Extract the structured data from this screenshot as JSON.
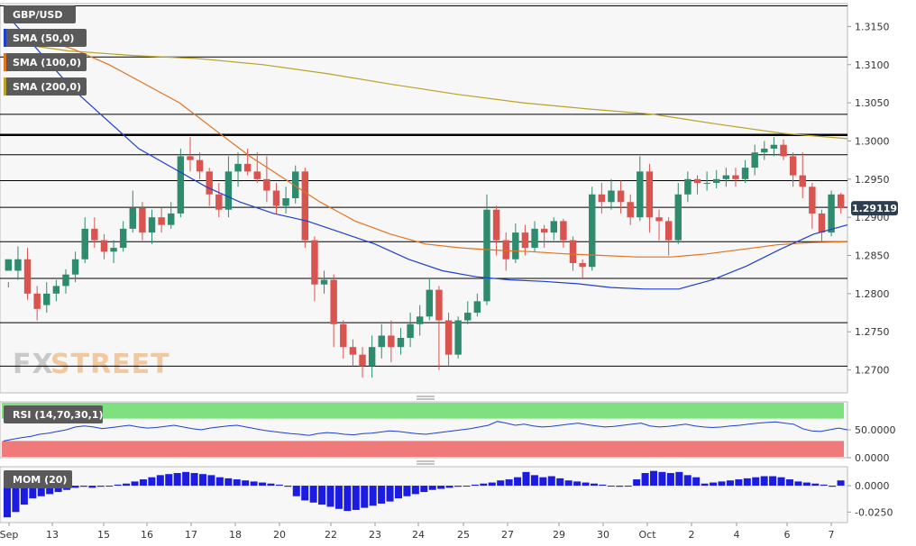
{
  "chart_data": [
    {
      "type": "candlestick",
      "symbol": "GBP/USD",
      "current_price": "1.29119",
      "ylim": [
        1.267,
        1.318
      ],
      "y_ticks": [
        "1.3150",
        "1.3100",
        "1.3050",
        "1.3000",
        "1.2950",
        "1.2900",
        "1.2850",
        "1.2800",
        "1.2750",
        "1.2700"
      ],
      "x_ticks": [
        "Sep",
        "13",
        "15",
        "16",
        "17",
        "18",
        "20",
        "22",
        "23",
        "24",
        "25",
        "27",
        "29",
        "30",
        "Oct",
        "2",
        "4",
        "6",
        "7"
      ],
      "horizontal_levels": [
        1.3177,
        1.311,
        1.3035,
        1.3008,
        1.2982,
        1.2948,
        1.2913,
        1.2868,
        1.282,
        1.2762,
        1.2705
      ],
      "series": [
        {
          "name": "SMA (50,0)",
          "color": "#1f3fd1"
        },
        {
          "name": "SMA (100,0)",
          "color": "#e0741f"
        },
        {
          "name": "SMA (200,0)",
          "color": "#b8a227"
        }
      ],
      "sma50": [
        1.317,
        1.312,
        1.307,
        1.303,
        1.299,
        1.2965,
        1.294,
        1.292,
        1.2905,
        1.2895,
        1.288,
        1.2865,
        1.2845,
        1.283,
        1.2822,
        1.2818,
        1.2816,
        1.2813,
        1.2808,
        1.2806,
        1.2806,
        1.2818,
        1.2836,
        1.2858,
        1.2878,
        1.289
      ],
      "sma100": [
        1.3145,
        1.3135,
        1.312,
        1.31,
        1.3075,
        1.305,
        1.3015,
        1.298,
        1.295,
        1.292,
        1.2895,
        1.2878,
        1.2865,
        1.286,
        1.2857,
        1.2855,
        1.2852,
        1.285,
        1.2848,
        1.2848,
        1.2852,
        1.2858,
        1.2864,
        1.2867,
        1.2868
      ],
      "sma200": [
        1.313,
        1.3118,
        1.3112,
        1.3108,
        1.31,
        1.3088,
        1.3074,
        1.3061,
        1.305,
        1.3042,
        1.3035,
        1.3022,
        1.301,
        1.3003
      ],
      "candles": [
        [
          1.283,
          1.2845,
          1.2815,
          1.2808
        ],
        [
          1.283,
          1.2845,
          1.2862,
          1.2818
        ],
        [
          1.2845,
          1.28,
          1.286,
          1.2792
        ],
        [
          1.28,
          1.278,
          1.281,
          1.2765
        ],
        [
          1.2785,
          1.28,
          1.2815,
          1.2775
        ],
        [
          1.28,
          1.281,
          1.2818,
          1.279
        ],
        [
          1.281,
          1.2825,
          1.2832,
          1.28
        ],
        [
          1.2825,
          1.2845,
          1.2855,
          1.2815
        ],
        [
          1.2845,
          1.2885,
          1.29,
          1.284
        ],
        [
          1.2885,
          1.287,
          1.29,
          1.286
        ],
        [
          1.287,
          1.2855,
          1.2878,
          1.2845
        ],
        [
          1.2855,
          1.286,
          1.287,
          1.284
        ],
        [
          1.286,
          1.2885,
          1.2895,
          1.2855
        ],
        [
          1.2885,
          1.2912,
          1.2935,
          1.288
        ],
        [
          1.2912,
          1.288,
          1.292,
          1.287
        ],
        [
          1.288,
          1.29,
          1.291,
          1.2865
        ],
        [
          1.29,
          1.289,
          1.2912,
          1.288
        ],
        [
          1.289,
          1.2905,
          1.292,
          1.2885
        ],
        [
          1.2905,
          1.298,
          1.299,
          1.29
        ],
        [
          1.298,
          1.2975,
          1.3005,
          1.296
        ],
        [
          1.2975,
          1.296,
          1.2985,
          1.295
        ],
        [
          1.296,
          1.293,
          1.2965,
          1.2915
        ],
        [
          1.293,
          1.291,
          1.2945,
          1.29
        ],
        [
          1.291,
          1.296,
          1.298,
          1.29
        ],
        [
          1.296,
          1.297,
          1.2985,
          1.294
        ],
        [
          1.297,
          1.296,
          1.299,
          1.2955
        ],
        [
          1.296,
          1.295,
          1.2985,
          1.2945
        ],
        [
          1.295,
          1.2935,
          1.298,
          1.292
        ],
        [
          1.2935,
          1.2915,
          1.2945,
          1.2905
        ],
        [
          1.2915,
          1.2925,
          1.294,
          1.2905
        ],
        [
          1.2925,
          1.296,
          1.2968,
          1.2918
        ],
        [
          1.296,
          1.287,
          1.2965,
          1.286
        ],
        [
          1.287,
          1.2812,
          1.2875,
          1.279
        ],
        [
          1.2812,
          1.2818,
          1.283,
          1.28
        ],
        [
          1.2818,
          1.276,
          1.2825,
          1.273
        ],
        [
          1.276,
          1.273,
          1.2765,
          1.2715
        ],
        [
          1.273,
          1.272,
          1.274,
          1.2705
        ],
        [
          1.272,
          1.2705,
          1.273,
          1.269
        ],
        [
          1.2705,
          1.273,
          1.2745,
          1.269
        ],
        [
          1.273,
          1.2745,
          1.276,
          1.2715
        ],
        [
          1.2745,
          1.273,
          1.2765,
          1.271
        ],
        [
          1.273,
          1.2742,
          1.2755,
          1.272
        ],
        [
          1.2742,
          1.276,
          1.2775,
          1.273
        ],
        [
          1.276,
          1.277,
          1.2785,
          1.2745
        ],
        [
          1.277,
          1.2805,
          1.282,
          1.2765
        ],
        [
          1.2805,
          1.2765,
          1.281,
          1.27
        ],
        [
          1.2765,
          1.272,
          1.2775,
          1.2705
        ],
        [
          1.272,
          1.2765,
          1.277,
          1.2715
        ],
        [
          1.2765,
          1.2775,
          1.279,
          1.276
        ],
        [
          1.2775,
          1.279,
          1.28,
          1.277
        ],
        [
          1.279,
          1.291,
          1.293,
          1.2785
        ],
        [
          1.291,
          1.287,
          1.2915,
          1.285
        ],
        [
          1.287,
          1.2845,
          1.288,
          1.283
        ],
        [
          1.2845,
          1.288,
          1.2892,
          1.284
        ],
        [
          1.288,
          1.286,
          1.289,
          1.285
        ],
        [
          1.286,
          1.2885,
          1.2895,
          1.2855
        ],
        [
          1.2885,
          1.288,
          1.289,
          1.286
        ],
        [
          1.288,
          1.2895,
          1.29,
          1.287
        ],
        [
          1.2895,
          1.287,
          1.2898,
          1.286
        ],
        [
          1.287,
          1.284,
          1.2875,
          1.283
        ],
        [
          1.284,
          1.2835,
          1.2845,
          1.282
        ],
        [
          1.2835,
          1.293,
          1.294,
          1.283
        ],
        [
          1.293,
          1.292,
          1.2945,
          1.2905
        ],
        [
          1.292,
          1.2935,
          1.295,
          1.291
        ],
        [
          1.2935,
          1.292,
          1.2948,
          1.2905
        ],
        [
          1.292,
          1.29,
          1.293,
          1.289
        ],
        [
          1.29,
          1.296,
          1.298,
          1.2895
        ],
        [
          1.296,
          1.29,
          1.297,
          1.288
        ],
        [
          1.29,
          1.2895,
          1.291,
          1.287
        ],
        [
          1.2895,
          1.287,
          1.29,
          1.285
        ],
        [
          1.287,
          1.293,
          1.2945,
          1.2865
        ],
        [
          1.293,
          1.295,
          1.296,
          1.292
        ],
        [
          1.295,
          1.2945,
          1.2955,
          1.293
        ],
        [
          1.2945,
          1.2945,
          1.296,
          1.2935
        ],
        [
          1.2945,
          1.295,
          1.2962,
          1.2938
        ],
        [
          1.295,
          1.2955,
          1.2965,
          1.294
        ],
        [
          1.2955,
          1.295,
          1.2965,
          1.294
        ],
        [
          1.295,
          1.2965,
          1.2975,
          1.2945
        ],
        [
          1.2965,
          1.2985,
          1.2995,
          1.2955
        ],
        [
          1.2985,
          1.299,
          1.3,
          1.2975
        ],
        [
          1.299,
          1.2995,
          1.3005,
          1.298
        ],
        [
          1.2995,
          1.298,
          1.3002,
          1.2975
        ],
        [
          1.298,
          1.2955,
          1.2985,
          1.294
        ],
        [
          1.2955,
          1.294,
          1.2985,
          1.2925
        ],
        [
          1.294,
          1.2905,
          1.2945,
          1.2885
        ],
        [
          1.2905,
          1.288,
          1.291,
          1.2868
        ],
        [
          1.288,
          1.293,
          1.2935,
          1.2875
        ],
        [
          1.293,
          1.2912,
          1.2932,
          1.2905
        ]
      ]
    },
    {
      "type": "line",
      "name": "RSI (14,70,30,1)",
      "y_ticks": [
        "50.0000",
        "0.0000"
      ],
      "ylim": [
        0,
        100
      ],
      "bands": {
        "overbought": 70,
        "oversold": 30
      },
      "values": [
        30,
        33,
        36,
        38,
        42,
        44,
        47,
        50,
        55,
        57,
        55,
        52,
        54,
        56,
        58,
        55,
        53,
        54,
        56,
        58,
        55,
        52,
        50,
        53,
        55,
        57,
        58,
        55,
        52,
        49,
        47,
        45,
        43,
        42,
        40,
        43,
        45,
        44,
        42,
        41,
        43,
        44,
        46,
        48,
        47,
        45,
        43,
        42,
        44,
        46,
        48,
        50,
        52,
        55,
        58,
        65,
        62,
        58,
        60,
        57,
        55,
        56,
        58,
        60,
        62,
        59,
        57,
        55,
        56,
        58,
        60,
        62,
        57,
        55,
        56,
        58,
        60,
        57,
        55,
        54,
        55,
        57,
        58,
        60,
        62,
        63,
        64,
        62,
        60,
        52,
        48,
        47,
        50,
        53,
        50
      ]
    },
    {
      "type": "bar",
      "name": "MOM (20)",
      "y_ticks": [
        "0.0000",
        "-0.0250"
      ],
      "ylim": [
        -0.035,
        0.018
      ],
      "values": [
        -0.03,
        -0.025,
        -0.018,
        -0.012,
        -0.01,
        -0.008,
        -0.006,
        -0.004,
        -0.002,
        -0.001,
        -0.002,
        -0.001,
        0.0,
        0.001,
        0.002,
        0.004,
        0.006,
        0.008,
        0.01,
        0.011,
        0.012,
        0.013,
        0.012,
        0.011,
        0.01,
        0.008,
        0.007,
        0.006,
        0.005,
        0.004,
        0.003,
        0.002,
        0.001,
        -0.001,
        -0.01,
        -0.014,
        -0.016,
        -0.018,
        -0.02,
        -0.022,
        -0.024,
        -0.023,
        -0.021,
        -0.019,
        -0.017,
        -0.015,
        -0.012,
        -0.01,
        -0.008,
        -0.006,
        -0.004,
        -0.003,
        -0.002,
        -0.001,
        0.0,
        0.001,
        0.002,
        0.003,
        0.005,
        0.006,
        0.008,
        0.013,
        0.01,
        0.008,
        0.009,
        0.007,
        0.005,
        0.004,
        0.003,
        0.002,
        0.001,
        0.0,
        -0.001,
        0.0,
        0.006,
        0.012,
        0.014,
        0.013,
        0.012,
        0.013,
        0.01,
        0.008,
        0.002,
        0.003,
        0.004,
        0.005,
        0.006,
        0.007,
        0.008,
        0.009,
        0.009,
        0.008,
        0.006,
        0.004,
        0.003,
        0.002,
        0.001,
        -0.001,
        0.005
      ]
    }
  ]
}
